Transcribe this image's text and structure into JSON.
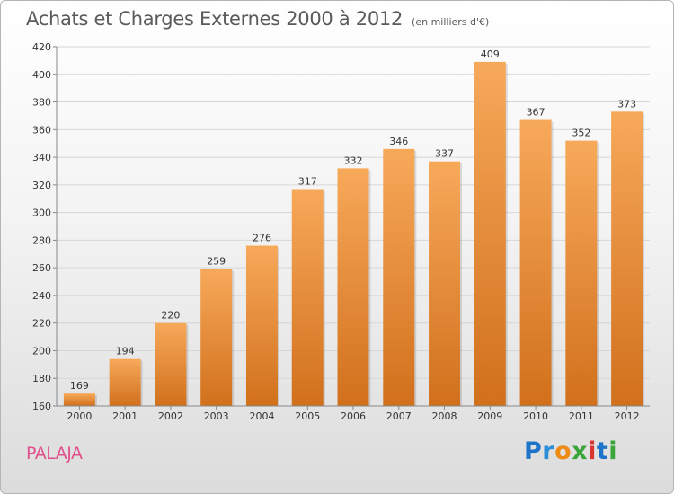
{
  "header": {
    "title": "Achats et Charges Externes 2000 à 2012",
    "subtitle": "(en milliers d'€)"
  },
  "footer": {
    "commune": "PALAJA",
    "brand_letters": [
      {
        "ch": "P",
        "color": "#1e74c8"
      },
      {
        "ch": "r",
        "color": "#2a8fd6"
      },
      {
        "ch": "o",
        "color": "#ee8a16"
      },
      {
        "ch": "x",
        "color": "#3aa53a"
      },
      {
        "ch": "i",
        "color": "#d9352f"
      },
      {
        "ch": "t",
        "color": "#1e74c8"
      },
      {
        "ch": "i",
        "color": "#3aa53a"
      }
    ]
  },
  "colors": {
    "bar_top": "#f7a95a",
    "bar_bottom": "#d1701c",
    "grid": "#d6d6d6"
  },
  "chart_data": {
    "type": "bar",
    "categories": [
      "2000",
      "2001",
      "2002",
      "2003",
      "2004",
      "2005",
      "2006",
      "2007",
      "2008",
      "2009",
      "2010",
      "2011",
      "2012"
    ],
    "values": [
      169,
      194,
      220,
      259,
      276,
      317,
      332,
      346,
      337,
      409,
      367,
      352,
      373
    ],
    "title": "Achats et Charges Externes 2000 à 2012",
    "ylim": [
      160,
      420
    ],
    "yticks": [
      160,
      180,
      200,
      220,
      240,
      260,
      280,
      300,
      320,
      340,
      360,
      380,
      400,
      420
    ],
    "grid": true
  }
}
